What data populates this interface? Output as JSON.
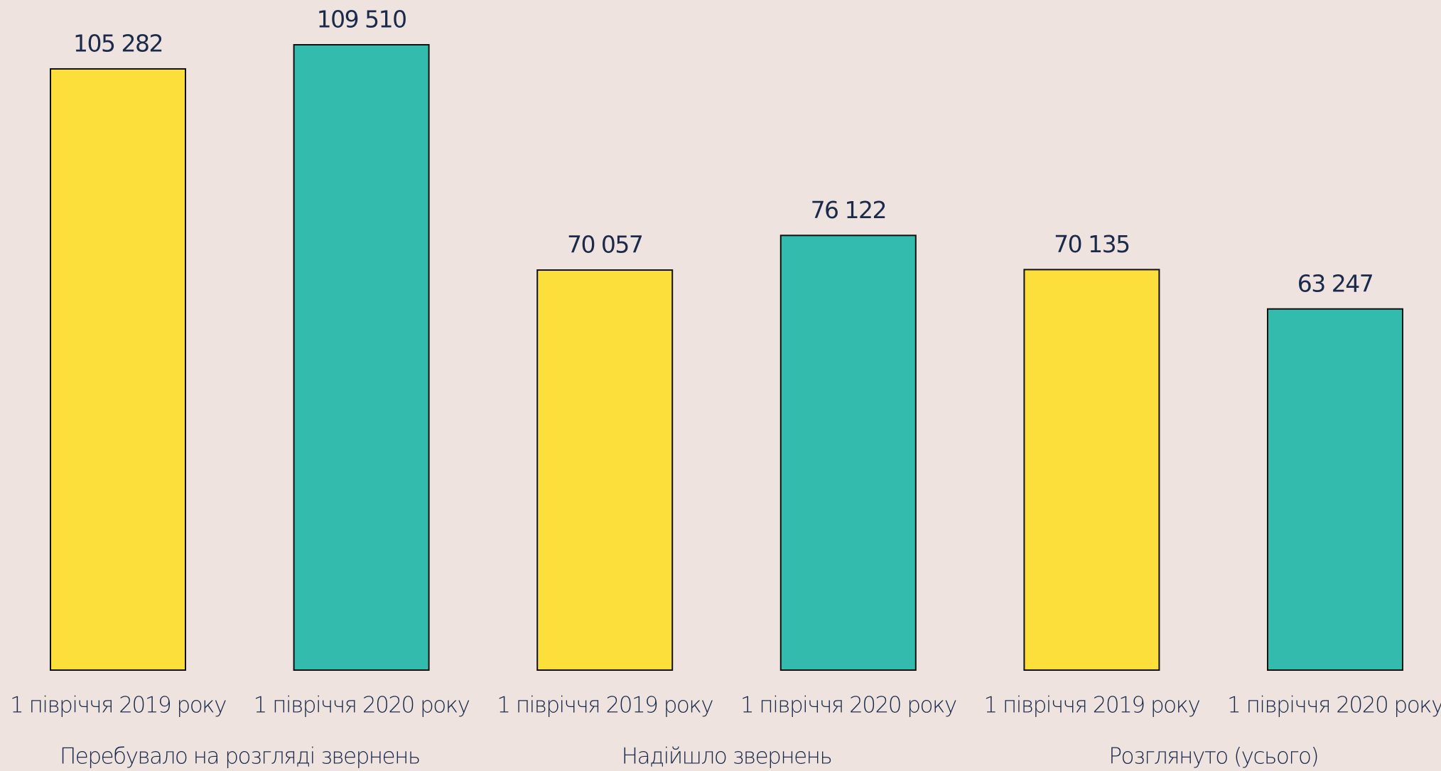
{
  "chart_data": {
    "type": "bar",
    "categories": [
      "Перебувало на розгляді звернень",
      "Надійшло звернень",
      "Розглянуто (усього)"
    ],
    "series": [
      {
        "name": "1 півріччя 2019 року",
        "color": "#fddf3c",
        "values": [
          105282,
          70057,
          70135
        ],
        "value_labels": [
          "105 282",
          "70 057",
          "70 135"
        ]
      },
      {
        "name": "1 півріччя 2020 року",
        "color": "#33bbad",
        "values": [
          109510,
          76122,
          63247
        ],
        "value_labels": [
          "109 510",
          "76 122",
          "63 247"
        ]
      }
    ]
  }
}
